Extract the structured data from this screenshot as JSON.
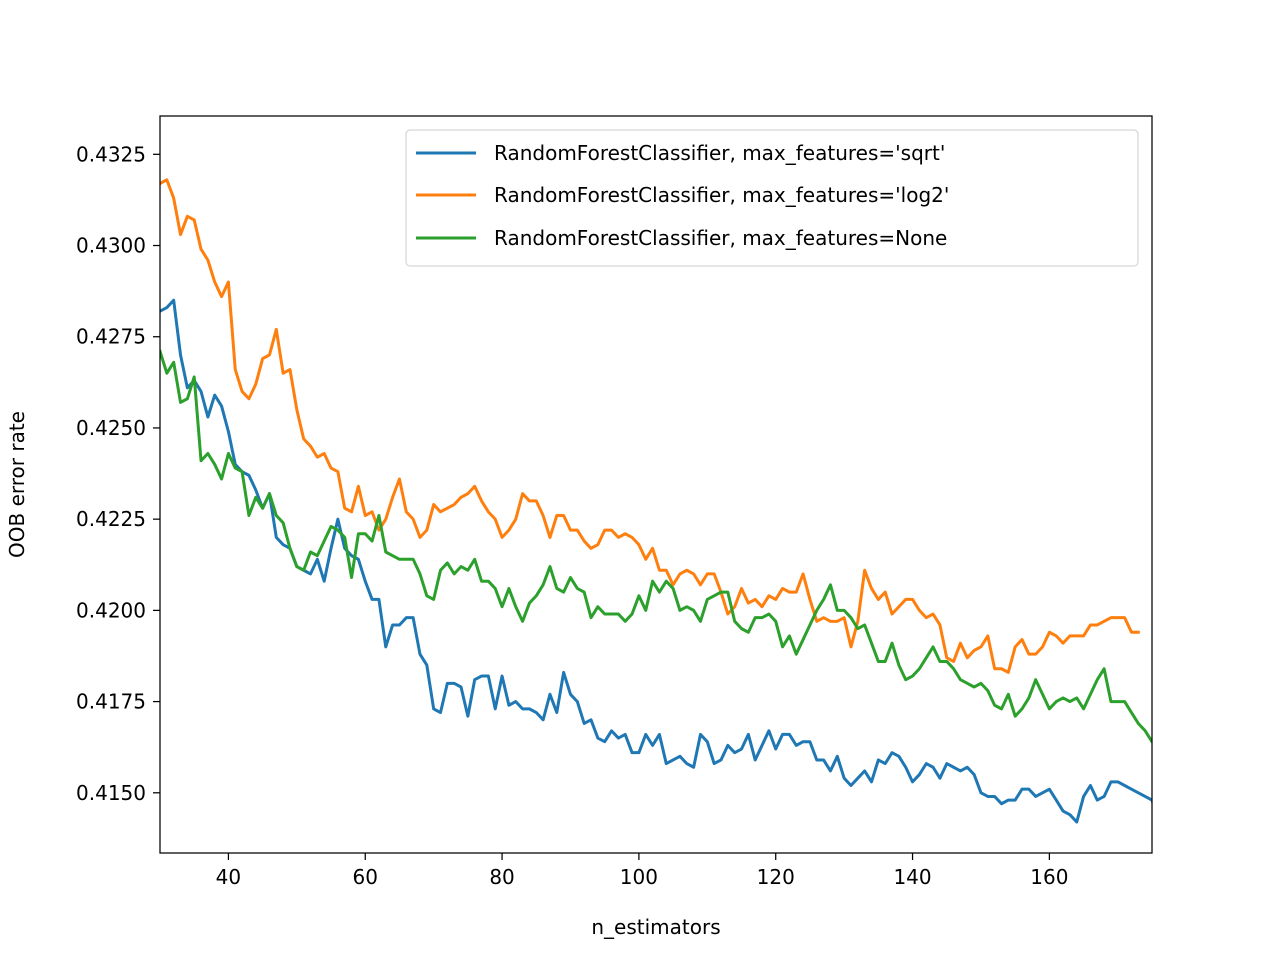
{
  "chart_data": {
    "type": "line",
    "title": "",
    "xlabel": "n_estimators",
    "ylabel": "OOB error rate",
    "xlim": [
      30,
      175
    ],
    "ylim": [
      0.41335,
      0.43355
    ],
    "xticks": [
      40,
      60,
      80,
      100,
      120,
      140,
      160
    ],
    "xtick_labels": [
      "40",
      "60",
      "80",
      "100",
      "120",
      "140",
      "160"
    ],
    "yticks": [
      0.415,
      0.4175,
      0.42,
      0.4225,
      0.425,
      0.4275,
      0.43,
      0.4325
    ],
    "ytick_labels": [
      "0.4150",
      "0.4175",
      "0.4200",
      "0.4225",
      "0.4250",
      "0.4275",
      "0.4300",
      "0.4325"
    ],
    "grid": false,
    "legend_position": "top-right",
    "x_start": 30,
    "x_step": 1,
    "series": [
      {
        "name": "RandomForestClassifier, max_features='sqrt'",
        "color": "#1f77b4",
        "values": [
          0.4282,
          0.4283,
          0.4285,
          0.427,
          0.4261,
          0.4263,
          0.426,
          0.4253,
          0.4259,
          0.4256,
          0.4249,
          0.424,
          0.4238,
          0.4237,
          0.4233,
          0.4228,
          0.4232,
          0.422,
          0.4218,
          0.4217,
          0.4212,
          0.4211,
          0.421,
          0.4214,
          0.4208,
          0.4217,
          0.4225,
          0.4217,
          0.4215,
          0.4214,
          0.4208,
          0.4203,
          0.4203,
          0.419,
          0.4196,
          0.4196,
          0.4198,
          0.4198,
          0.4188,
          0.4185,
          0.4173,
          0.4172,
          0.418,
          0.418,
          0.4179,
          0.4171,
          0.4181,
          0.4182,
          0.4182,
          0.4173,
          0.4182,
          0.4174,
          0.4175,
          0.4173,
          0.4173,
          0.4172,
          0.417,
          0.4177,
          0.4172,
          0.4183,
          0.4177,
          0.4175,
          0.4169,
          0.417,
          0.4165,
          0.4164,
          0.4167,
          0.4165,
          0.4166,
          0.4161,
          0.4161,
          0.4166,
          0.4163,
          0.4166,
          0.4158,
          0.4159,
          0.416,
          0.4158,
          0.4157,
          0.4166,
          0.4164,
          0.4158,
          0.4159,
          0.4163,
          0.4161,
          0.4162,
          0.4166,
          0.4159,
          0.4163,
          0.4167,
          0.4162,
          0.4166,
          0.4166,
          0.4163,
          0.4164,
          0.4164,
          0.4159,
          0.4159,
          0.4156,
          0.416,
          0.4154,
          0.4152,
          0.4154,
          0.4156,
          0.4153,
          0.4159,
          0.4158,
          0.4161,
          0.416,
          0.4157,
          0.4153,
          0.4155,
          0.4158,
          0.4157,
          0.4154,
          0.4158,
          0.4157,
          0.4156,
          0.4157,
          0.4155,
          0.415,
          0.4149,
          0.4149,
          0.4147,
          0.4148,
          0.4148,
          0.4151,
          0.4151,
          0.4149,
          0.415,
          0.4151,
          0.4148,
          0.4145,
          0.4144,
          0.4142,
          0.4149,
          0.4152,
          0.4148,
          0.4149,
          0.4153,
          0.4153,
          0.4152,
          0.4151,
          0.415,
          0.4149,
          0.4148,
          0.4142
        ]
      },
      {
        "name": "RandomForestClassifier, max_features='log2'",
        "color": "#ff7f0e",
        "values": [
          0.4317,
          0.4318,
          0.4313,
          0.4303,
          0.4308,
          0.4307,
          0.4299,
          0.4296,
          0.429,
          0.4286,
          0.429,
          0.4266,
          0.426,
          0.4258,
          0.4262,
          0.4269,
          0.427,
          0.4277,
          0.4265,
          0.4266,
          0.4255,
          0.4247,
          0.4245,
          0.4242,
          0.4243,
          0.4239,
          0.4238,
          0.4228,
          0.4227,
          0.4234,
          0.4226,
          0.4227,
          0.4222,
          0.4225,
          0.4231,
          0.4236,
          0.4227,
          0.4225,
          0.422,
          0.4222,
          0.4229,
          0.4227,
          0.4228,
          0.4229,
          0.4231,
          0.4232,
          0.4234,
          0.423,
          0.4227,
          0.4225,
          0.422,
          0.4222,
          0.4225,
          0.4232,
          0.423,
          0.423,
          0.4226,
          0.422,
          0.4226,
          0.4226,
          0.4222,
          0.4222,
          0.4219,
          0.4217,
          0.4218,
          0.4222,
          0.4222,
          0.422,
          0.4221,
          0.422,
          0.4218,
          0.4214,
          0.4217,
          0.4211,
          0.4211,
          0.4207,
          0.421,
          0.4211,
          0.421,
          0.4207,
          0.421,
          0.421,
          0.4205,
          0.4199,
          0.4201,
          0.4206,
          0.4202,
          0.4203,
          0.4201,
          0.4204,
          0.4203,
          0.4206,
          0.4205,
          0.4205,
          0.421,
          0.4203,
          0.4197,
          0.4198,
          0.4197,
          0.4197,
          0.4198,
          0.419,
          0.4197,
          0.4211,
          0.4206,
          0.4203,
          0.4205,
          0.4199,
          0.4201,
          0.4203,
          0.4203,
          0.42,
          0.4198,
          0.4199,
          0.4196,
          0.4187,
          0.4186,
          0.4191,
          0.4187,
          0.4189,
          0.419,
          0.4193,
          0.4184,
          0.4184,
          0.4183,
          0.419,
          0.4192,
          0.4188,
          0.4188,
          0.419,
          0.4194,
          0.4193,
          0.4191,
          0.4193,
          0.4193,
          0.4193,
          0.4196,
          0.4196,
          0.4197,
          0.4198,
          0.4198,
          0.4198,
          0.4194,
          0.4194
        ]
      },
      {
        "name": "RandomForestClassifier, max_features=None",
        "color": "#2ca02c",
        "values": [
          0.4271,
          0.4265,
          0.4268,
          0.4257,
          0.4258,
          0.4264,
          0.4241,
          0.4243,
          0.424,
          0.4236,
          0.4243,
          0.4239,
          0.4238,
          0.4226,
          0.4231,
          0.4228,
          0.4232,
          0.4226,
          0.4224,
          0.4217,
          0.4212,
          0.4211,
          0.4216,
          0.4215,
          0.4219,
          0.4223,
          0.4222,
          0.422,
          0.4209,
          0.4221,
          0.4221,
          0.4219,
          0.4226,
          0.4216,
          0.4215,
          0.4214,
          0.4214,
          0.4214,
          0.421,
          0.4204,
          0.4203,
          0.4211,
          0.4213,
          0.421,
          0.4212,
          0.4211,
          0.4214,
          0.4208,
          0.4208,
          0.4206,
          0.4201,
          0.4206,
          0.4201,
          0.4197,
          0.4202,
          0.4204,
          0.4207,
          0.4212,
          0.4206,
          0.4205,
          0.4209,
          0.4206,
          0.4205,
          0.4198,
          0.4201,
          0.4199,
          0.4199,
          0.4199,
          0.4197,
          0.4199,
          0.4204,
          0.42,
          0.4208,
          0.4205,
          0.4208,
          0.4206,
          0.42,
          0.4201,
          0.42,
          0.4197,
          0.4203,
          0.4204,
          0.4205,
          0.4205,
          0.4197,
          0.4195,
          0.4194,
          0.4198,
          0.4198,
          0.4199,
          0.4197,
          0.419,
          0.4193,
          0.4188,
          0.4192,
          0.4196,
          0.42,
          0.4203,
          0.4207,
          0.42,
          0.42,
          0.4198,
          0.4195,
          0.4196,
          0.4191,
          0.4186,
          0.4186,
          0.4191,
          0.4185,
          0.4181,
          0.4182,
          0.4184,
          0.4187,
          0.419,
          0.4186,
          0.4186,
          0.4184,
          0.4181,
          0.418,
          0.4179,
          0.418,
          0.4178,
          0.4174,
          0.4173,
          0.4177,
          0.4171,
          0.4173,
          0.4176,
          0.4181,
          0.4177,
          0.4173,
          0.4175,
          0.4176,
          0.4175,
          0.4176,
          0.4173,
          0.4177,
          0.4181,
          0.4184,
          0.4175,
          0.4175,
          0.4175,
          0.4172,
          0.4169,
          0.4167,
          0.4164,
          0.4163,
          0.4167
        ]
      }
    ]
  }
}
